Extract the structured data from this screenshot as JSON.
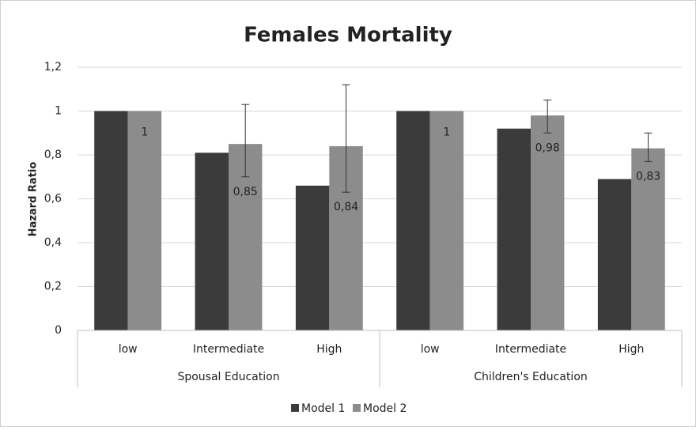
{
  "chart_data": {
    "type": "bar",
    "title": "Females Mortality",
    "y_label": "Hazard Ratio",
    "categories": [
      "low",
      "Intermediate",
      "High",
      "low",
      "Intermediate",
      "High"
    ],
    "groups": [
      {
        "name": "Spousal Education",
        "size": 3
      },
      {
        "name": "Children's Education",
        "size": 3
      }
    ],
    "series": [
      {
        "name": "Model 1",
        "color": "#3b3b3b",
        "values": [
          1,
          0.81,
          0.66,
          1,
          0.92,
          0.69
        ]
      },
      {
        "name": "Model 2",
        "color": "#8c8c8c",
        "values": [
          1,
          0.85,
          0.84,
          1,
          0.98,
          0.83
        ],
        "value_labels": [
          "1",
          "0,85",
          "0,84",
          "1",
          "0,98",
          "0,83"
        ],
        "ci_lower": [
          null,
          0.7,
          0.63,
          null,
          0.9,
          0.77
        ],
        "ci_upper": [
          null,
          1.03,
          1.12,
          null,
          1.05,
          0.9
        ]
      }
    ],
    "ylim": [
      0,
      1.2
    ],
    "yticks": [
      0,
      {
        "value": 0.2,
        "label": "0,2"
      },
      {
        "value": 0.4,
        "label": "0,4"
      },
      {
        "value": 0.6,
        "label": "0,6"
      },
      {
        "value": 0.8,
        "label": "0,8"
      },
      1,
      {
        "value": 1.2,
        "label": "1,2"
      }
    ],
    "grid": true,
    "legend": "bottom"
  }
}
